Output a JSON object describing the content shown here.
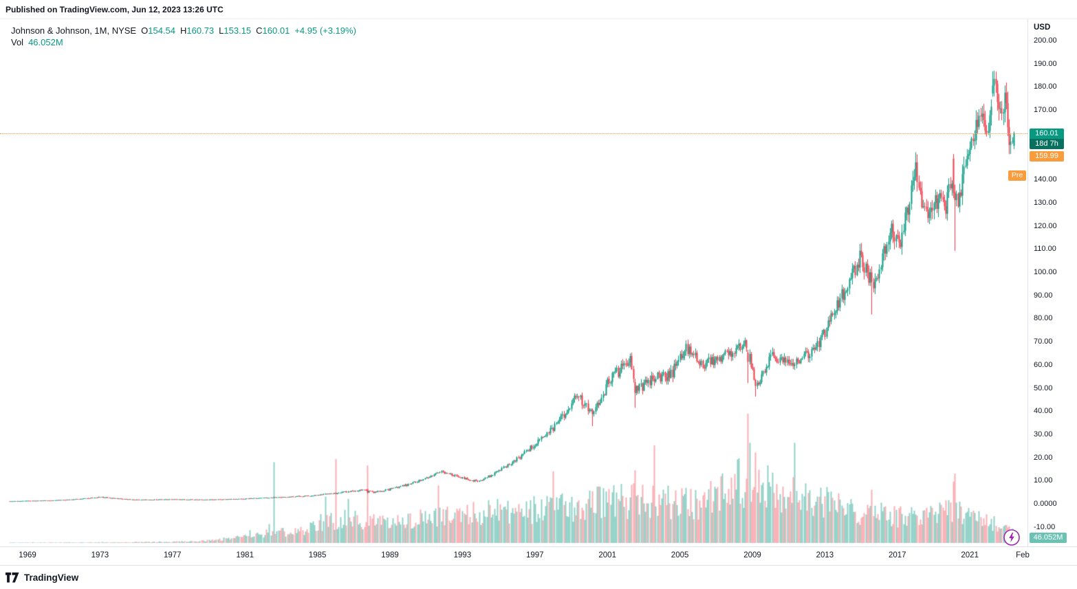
{
  "header": {
    "published": "Published on TradingView.com, Jun 12, 2023 13:26 UTC"
  },
  "legend": {
    "symbol": "Johnson & Johnson, 1M, NYSE",
    "ohlc": [
      {
        "label": "O",
        "value": "154.54"
      },
      {
        "label": "H",
        "value": "160.73"
      },
      {
        "label": "L",
        "value": "153.15"
      },
      {
        "label": "C",
        "value": "160.01"
      }
    ],
    "change": "+4.95 (+3.19%)",
    "vol_label": "Vol",
    "vol_value": "46.052M"
  },
  "price_axis": {
    "currency": "USD",
    "labels": [
      "200.00",
      "190.00",
      "180.00",
      "170.00",
      "160.00",
      "150.00",
      "140.00",
      "130.00",
      "120.00",
      "110.00",
      "100.00",
      "90.00",
      "80.00",
      "70.00",
      "60.00",
      "50.00",
      "40.00",
      "30.00",
      "20.00",
      "10.00",
      "0.0000",
      "-10.00"
    ],
    "last_price_badge": "160.01",
    "countdown": "18d 7h",
    "pre_label": "Pre",
    "pre_price_badge": "159.99",
    "volume_badge": "46.052M"
  },
  "time_axis": {
    "years": [
      "1969",
      "1973",
      "1977",
      "1981",
      "1985",
      "1989",
      "1993",
      "1997",
      "2001",
      "2005",
      "2009",
      "2013",
      "2017",
      "2021"
    ],
    "end_label": "Feb"
  },
  "footer": {
    "brand": "TradingView"
  },
  "colors": {
    "up": "#089981",
    "down": "#f23645",
    "volume_up": "rgba(8,153,129,0.45)",
    "volume_down": "rgba(242,54,69,0.40)",
    "premarket": "#f89c3d",
    "countdown_bg": "#07705e",
    "volume_badge_bg": "rgba(8,153,129,0.60)",
    "flash_icon": "#9c27b0",
    "axis_text": "#131722"
  },
  "chart_data": {
    "type": "candlestick",
    "symbol": "Johnson & Johnson (JNJ), NYSE",
    "timeframe": "1M",
    "title": "",
    "ylabel": "USD",
    "y_range": [
      -10,
      200
    ],
    "x_range_years": [
      1968.0,
      2023.5
    ],
    "grid": false,
    "legend_position": "top-left",
    "last_bar": {
      "open": 154.54,
      "high": 160.73,
      "low": 153.15,
      "close": 160.01,
      "volume_m": 46.052
    },
    "premarket_price": 159.99,
    "last_price": 160.01,
    "start_year": 1968,
    "months": 666,
    "seed": 9,
    "price_anchors": [
      [
        1968.0,
        1.1
      ],
      [
        1969.5,
        1.3
      ],
      [
        1971.0,
        1.6
      ],
      [
        1973.0,
        2.9
      ],
      [
        1974.9,
        1.7
      ],
      [
        1977.0,
        1.85
      ],
      [
        1979.0,
        1.75
      ],
      [
        1980.5,
        2.0
      ],
      [
        1982.5,
        2.7
      ],
      [
        1984.5,
        3.4
      ],
      [
        1986.5,
        5.2
      ],
      [
        1987.7,
        6.3
      ],
      [
        1988.1,
        4.9
      ],
      [
        1989.5,
        7.2
      ],
      [
        1991.8,
        14.2
      ],
      [
        1992.4,
        12.5
      ],
      [
        1993.8,
        9.6
      ],
      [
        1995.5,
        16.5
      ],
      [
        1997.0,
        26.0
      ],
      [
        1998.6,
        38.0
      ],
      [
        1999.3,
        47.0
      ],
      [
        2000.2,
        38.5
      ],
      [
        2001.0,
        52.0
      ],
      [
        2002.2,
        63.0
      ],
      [
        2002.6,
        49.0
      ],
      [
        2003.2,
        53.0
      ],
      [
        2004.5,
        56.0
      ],
      [
        2005.3,
        68.0
      ],
      [
        2006.2,
        60.0
      ],
      [
        2007.5,
        64.0
      ],
      [
        2008.7,
        69.0
      ],
      [
        2009.2,
        50.0
      ],
      [
        2010.0,
        64.0
      ],
      [
        2011.4,
        61.0
      ],
      [
        2012.5,
        67.0
      ],
      [
        2013.8,
        88.0
      ],
      [
        2014.9,
        106.0
      ],
      [
        2015.7,
        94.0
      ],
      [
        2016.6,
        120.0
      ],
      [
        2017.1,
        112.0
      ],
      [
        2018.0,
        144.0
      ],
      [
        2018.6,
        123.0
      ],
      [
        2019.0,
        132.0
      ],
      [
        2019.7,
        129.0
      ],
      [
        2020.1,
        147.0
      ],
      [
        2020.3,
        131.0
      ],
      [
        2020.8,
        148.0
      ],
      [
        2021.3,
        163.0
      ],
      [
        2021.7,
        172.0
      ],
      [
        2021.95,
        159.0
      ],
      [
        2022.3,
        180.0
      ],
      [
        2022.65,
        167.0
      ],
      [
        2022.95,
        177.0
      ],
      [
        2023.2,
        153.0
      ],
      [
        2023.42,
        160.01
      ]
    ],
    "volume_anchors_m": [
      [
        1968,
        2
      ],
      [
        1974,
        4
      ],
      [
        1978,
        10
      ],
      [
        1980,
        28
      ],
      [
        1982,
        60
      ],
      [
        1984,
        75
      ],
      [
        1986,
        150
      ],
      [
        1988,
        140
      ],
      [
        1991,
        160
      ],
      [
        1994,
        190
      ],
      [
        1997,
        210
      ],
      [
        2000,
        250
      ],
      [
        2003,
        270
      ],
      [
        2006,
        250
      ],
      [
        2008,
        400
      ],
      [
        2009,
        360
      ],
      [
        2011,
        330
      ],
      [
        2013,
        260
      ],
      [
        2015,
        190
      ],
      [
        2017,
        170
      ],
      [
        2019,
        165
      ],
      [
        2020.3,
        230
      ],
      [
        2021,
        170
      ],
      [
        2022,
        150
      ],
      [
        2023.42,
        75
      ]
    ],
    "overrides": {
      "1982-08": {
        "vol": 500
      },
      "1986-01": {
        "o": 4.6,
        "c": 4.25,
        "vol": 520
      },
      "1987-10": {
        "o": 6.25,
        "h": 6.4,
        "l": 4.35,
        "c": 4.85,
        "vol": 480
      },
      "2000-03": {
        "l": 33.5,
        "vol": 320
      },
      "2002-07": {
        "o": 52.5,
        "h": 54.0,
        "l": 41.4,
        "c": 47.9,
        "vol": 450
      },
      "2008-10": {
        "o": 65.3,
        "h": 66.5,
        "l": 52.1,
        "c": 61.3,
        "vol": 800
      },
      "2008-11": {
        "vol": 620
      },
      "2009-03": {
        "l": 46.3,
        "vol": 560
      },
      "2011-05": {
        "vol": 620
      },
      "2015-08": {
        "l": 81.7,
        "vol": 330
      },
      "2020-02": {
        "o": 149.0,
        "h": 151.0,
        "l": 132.0,
        "c": 134.2,
        "vol": 380
      },
      "2020-03": {
        "o": 134.5,
        "h": 137.8,
        "l": 109.2,
        "c": 131.1,
        "vol": 430
      },
      "2022-04": {
        "o": 177.2,
        "h": 186.69,
        "l": 175.8,
        "c": 180.5
      }
    }
  }
}
